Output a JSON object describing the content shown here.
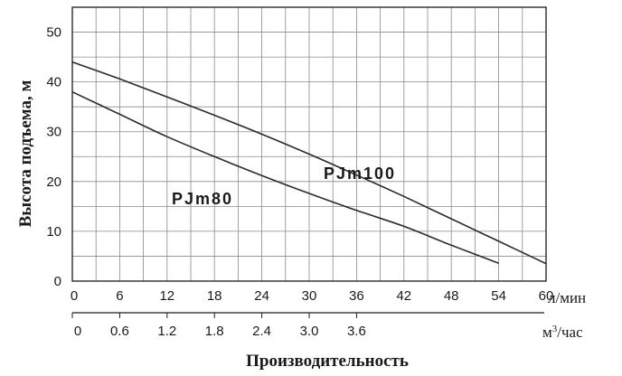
{
  "chart_data": {
    "type": "line",
    "ylabel": "Высота подъема, м",
    "xlabel": "Производительность",
    "x_unit_primary": "л/мин",
    "x_unit_secondary_main": "м",
    "x_unit_secondary_sup": "3",
    "x_unit_secondary_tail": "/час",
    "xlim": [
      0,
      60
    ],
    "ylim": [
      0,
      55
    ],
    "x_ticks": [
      0,
      6,
      12,
      18,
      24,
      30,
      36,
      42,
      48,
      54,
      60
    ],
    "x_tick_labels": [
      "0",
      "6",
      "12",
      "18",
      "24",
      "30",
      "36",
      "42",
      "48",
      "54",
      "60"
    ],
    "x2_ticks": [
      0,
      6,
      12,
      18,
      24,
      30,
      36
    ],
    "x2_tick_labels": [
      "0",
      "0.6",
      "1.2",
      "1.8",
      "2.4",
      "3.0",
      "3.6"
    ],
    "y_ticks": [
      0,
      10,
      20,
      30,
      40,
      50
    ],
    "y_tick_labels": [
      "0",
      "10",
      "20",
      "30",
      "40",
      "50"
    ],
    "grid": true,
    "series": [
      {
        "name": "PJm100",
        "x": [
          0,
          6,
          12,
          18,
          24,
          30,
          36,
          42,
          48,
          54,
          60
        ],
        "y": [
          44,
          40.6,
          37,
          33.3,
          29.5,
          25.5,
          21.3,
          17,
          12.5,
          8,
          3.5
        ]
      },
      {
        "name": "PJm80",
        "x": [
          0,
          6,
          12,
          18,
          24,
          30,
          36,
          42,
          48,
          54
        ],
        "y": [
          38,
          33.5,
          29,
          25,
          21.2,
          17.6,
          14.2,
          11,
          7.2,
          3.6
        ]
      }
    ]
  }
}
